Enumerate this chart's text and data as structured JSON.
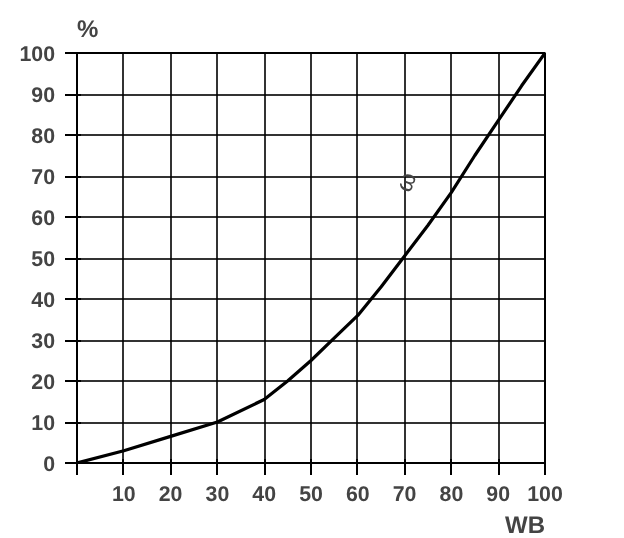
{
  "chart_data": {
    "type": "line",
    "xlabel": "WB",
    "ylabel": "%",
    "x": [
      0,
      10,
      20,
      30,
      40,
      45,
      50,
      55,
      60,
      65,
      70,
      75,
      80,
      85,
      90,
      95,
      100
    ],
    "series": [
      {
        "color": "#000000",
        "values": [
          0,
          3,
          6.5,
          10,
          15.5,
          20,
          25,
          30.5,
          36,
          43,
          50.5,
          58,
          66,
          75,
          83.5,
          92,
          100
        ]
      }
    ],
    "xlim": [
      0,
      100
    ],
    "ylim": [
      0,
      100
    ],
    "xticks": [
      {
        "value": 0,
        "label": null
      },
      10,
      20,
      30,
      40,
      50,
      60,
      70,
      80,
      90,
      100
    ],
    "yticks": [
      0,
      10,
      20,
      30,
      40,
      50,
      60,
      70,
      80,
      90,
      100
    ],
    "annotations": [
      "ω"
    ],
    "grid": true,
    "marker": "none",
    "line_style": "solid"
  }
}
